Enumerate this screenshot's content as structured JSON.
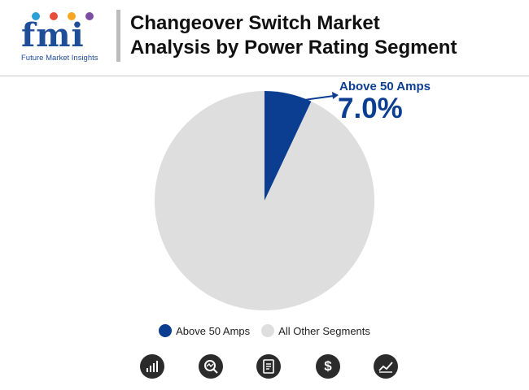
{
  "brand": {
    "logo_letters": "fmi",
    "logo_caption": "Future Market Insights"
  },
  "header": {
    "title_line1": "Changeover Switch Market",
    "title_line2": "Analysis by Power Rating Segment"
  },
  "colors": {
    "primary": "#0b3d91",
    "other": "#dedede",
    "logo_blue": "#1f4e99"
  },
  "callout": {
    "label": "Above 50 Amps",
    "value": "7.0%"
  },
  "chart_data": {
    "type": "pie",
    "title": "Changeover Switch Market Analysis by Power Rating Segment",
    "categories": [
      "Above 50 Amps",
      "All Other Segments"
    ],
    "values": [
      7.0,
      93.0
    ],
    "colors": [
      "#0b3d91",
      "#dedede"
    ],
    "legend_position": "bottom-center",
    "annotations": [
      {
        "label": "Above 50 Amps",
        "value": "7.0%"
      }
    ]
  },
  "legend": {
    "items": [
      {
        "label": "Above 50 Amps",
        "color": "#0b3d91"
      },
      {
        "label": "All Other Segments",
        "color": "#dedede"
      }
    ]
  },
  "footer_icons": [
    {
      "name": "bar-growth-icon"
    },
    {
      "name": "magnifier-chart-icon"
    },
    {
      "name": "report-document-icon"
    },
    {
      "name": "dollar-icon",
      "glyph": "$"
    },
    {
      "name": "line-trend-icon"
    }
  ]
}
